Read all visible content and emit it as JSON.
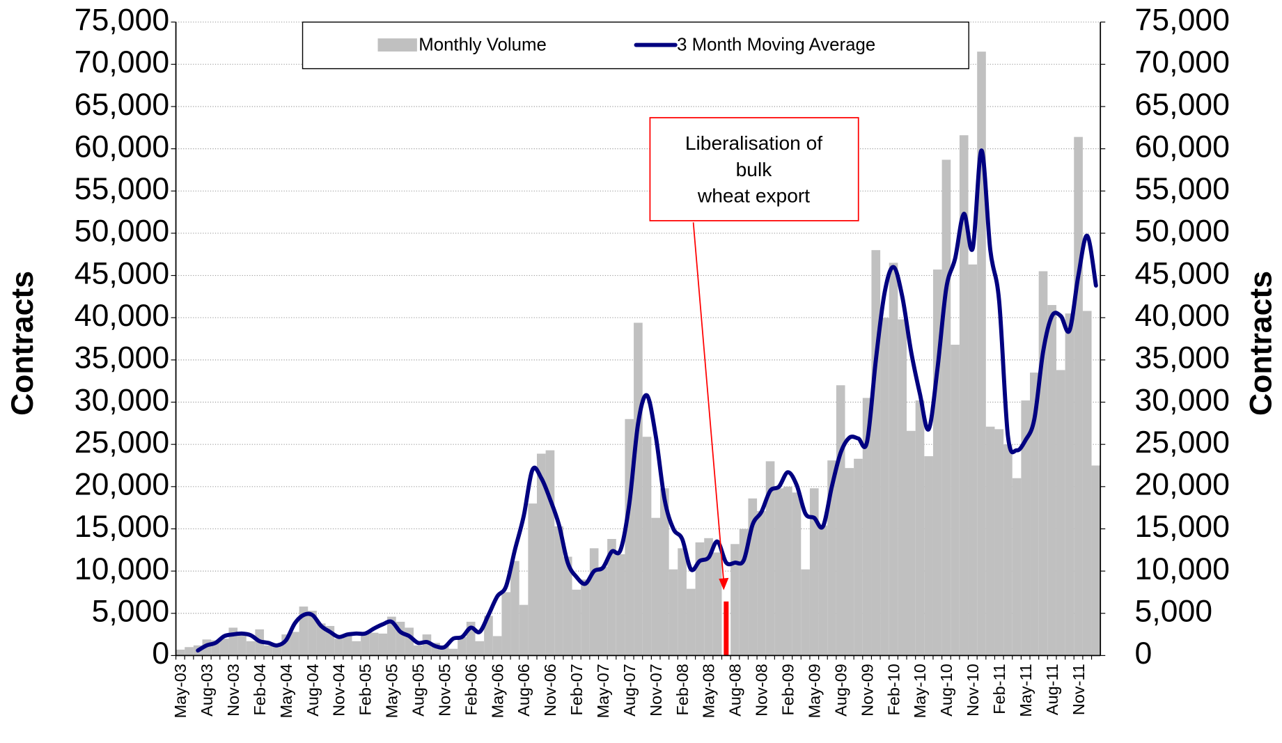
{
  "chart_data": {
    "type": "bar_line",
    "y_label": "Contracts",
    "y2_label": "Contracts",
    "categories": [
      "May-03",
      null,
      null,
      "Aug-03",
      null,
      null,
      "Nov-03",
      null,
      null,
      "Feb-04",
      null,
      null,
      "May-04",
      null,
      null,
      "Aug-04",
      null,
      null,
      "Nov-04",
      null,
      null,
      "Feb-05",
      null,
      null,
      "May-05",
      null,
      null,
      "Aug-05",
      null,
      null,
      "Nov-05",
      null,
      null,
      "Feb-06",
      null,
      null,
      "May-06",
      null,
      null,
      "Aug-06",
      null,
      null,
      "Nov-06",
      null,
      null,
      "Feb-07",
      null,
      null,
      "May-07",
      null,
      null,
      "Aug-07",
      null,
      null,
      "Nov-07",
      null,
      null,
      "Feb-08",
      null,
      null,
      "May-08",
      null,
      null,
      "Aug-08",
      null,
      null,
      "Nov-08",
      null,
      null,
      "Feb-09",
      null,
      null,
      "May-09",
      null,
      null,
      "Aug-09",
      null,
      null,
      "Nov-09",
      null,
      null,
      "Feb-10",
      null,
      null,
      "May-10",
      null,
      null,
      "Aug-10",
      null,
      null,
      "Nov-10",
      null,
      null,
      "Feb-11",
      null,
      null,
      "May-11",
      null,
      null,
      "Aug-11",
      null,
      null,
      "Nov-11",
      null,
      null
    ],
    "series": [
      {
        "name": "Monthly Volume",
        "type": "bar",
        "color": "#c0c0c0",
        "values": [
          700,
          1000,
          1200,
          1900,
          1800,
          2000,
          3300,
          2700,
          1700,
          3100,
          1200,
          1300,
          2500,
          2800,
          5800,
          5300,
          3800,
          3500,
          2000,
          2500,
          1700,
          2600,
          2700,
          2600,
          4600,
          4000,
          3300,
          1200,
          2500,
          1500,
          1200,
          800,
          2200,
          4000,
          1700,
          4700,
          2300,
          7500,
          11200,
          6000,
          18000,
          23900,
          24300,
          15300,
          11700,
          7800,
          9000,
          12700,
          10500,
          13800,
          12000,
          28000,
          39400,
          25900,
          16300,
          19800,
          10200,
          12700,
          7900,
          13400,
          13900,
          12200,
          6400,
          13200,
          15000,
          18600,
          17100,
          23000,
          19800,
          20000,
          19300,
          10200,
          19800,
          15400,
          23100,
          32000,
          22200,
          23300,
          30500,
          48000,
          40000,
          46500,
          39800,
          26600,
          30200,
          23600,
          45700,
          58700,
          36800,
          61600,
          46300,
          71500,
          27100,
          26800,
          25000,
          21000,
          30200,
          33500,
          45500,
          41500,
          33800,
          40500,
          61400,
          40800,
          22500
        ]
      },
      {
        "name": "3 Month Moving Average",
        "type": "line",
        "color": "#000080",
        "values": [
          null,
          null,
          600,
          1200,
          1500,
          2300,
          2500,
          2600,
          2400,
          1700,
          1500,
          1200,
          1800,
          3800,
          4800,
          4800,
          3500,
          2800,
          2200,
          2500,
          2600,
          2600,
          3200,
          3700,
          4000,
          2800,
          2300,
          1500,
          1600,
          1100,
          1000,
          2000,
          2200,
          3300,
          2800,
          4800,
          7000,
          8200,
          12500,
          16500,
          22000,
          21000,
          18500,
          15500,
          11000,
          9300,
          8500,
          10000,
          10400,
          12300,
          12500,
          18000,
          27500,
          30800,
          26000,
          18500,
          15000,
          13800,
          10200,
          11200,
          11600,
          13500,
          11000,
          11000,
          11300,
          15500,
          17000,
          19500,
          20000,
          21700,
          20200,
          16800,
          16300,
          15300,
          20000,
          24000,
          25800,
          25700,
          25300,
          35000,
          43000,
          46000,
          42500,
          36000,
          31000,
          26800,
          34000,
          43500,
          47000,
          52300,
          48200,
          59800,
          48000,
          42000,
          26000,
          24300,
          25500,
          28000,
          36000,
          40200,
          40200,
          38500,
          45000,
          49700,
          43800
        ]
      }
    ],
    "annotation": {
      "text": [
        "Liberalisation of",
        "bulk",
        "wheat export"
      ],
      "target": 62,
      "color": "#ff0000"
    },
    "ylim": [
      0,
      75000
    ],
    "yticks": [
      0,
      {
        "value": 5000,
        "label": "5,000"
      },
      {
        "value": 10000,
        "label": "10,000"
      },
      {
        "value": 15000,
        "label": "15,000"
      },
      {
        "value": 20000,
        "label": "20,000"
      },
      {
        "value": 25000,
        "label": "25,000"
      },
      {
        "value": 30000,
        "label": "30,000"
      },
      {
        "value": 35000,
        "label": "35,000"
      },
      {
        "value": 40000,
        "label": "40,000"
      },
      {
        "value": 45000,
        "label": "45,000"
      },
      {
        "value": 50000,
        "label": "50,000"
      },
      {
        "value": 55000,
        "label": "55,000"
      },
      {
        "value": 60000,
        "label": "60,000"
      },
      {
        "value": 65000,
        "label": "65,000"
      },
      {
        "value": 70000,
        "label": "70,000"
      },
      {
        "value": 75000,
        "label": "75,000"
      }
    ],
    "y2lim": [
      0,
      75000
    ],
    "y2ticks": [
      0,
      {
        "value": 5000,
        "label": "5,000"
      },
      {
        "value": 10000,
        "label": "10,000"
      },
      {
        "value": 15000,
        "label": "15,000"
      },
      {
        "value": 20000,
        "label": "20,000"
      },
      {
        "value": 25000,
        "label": "25,000"
      },
      {
        "value": 30000,
        "label": "30,000"
      },
      {
        "value": 35000,
        "label": "35,000"
      },
      {
        "value": 40000,
        "label": "40,000"
      },
      {
        "value": 45000,
        "label": "45,000"
      },
      {
        "value": 50000,
        "label": "50,000"
      },
      {
        "value": 55000,
        "label": "55,000"
      },
      {
        "value": 60000,
        "label": "60,000"
      },
      {
        "value": 65000,
        "label": "65,000"
      },
      {
        "value": 70000,
        "label": "70,000"
      },
      {
        "value": 75000,
        "label": "75,000"
      }
    ],
    "grid": true,
    "legend": "top"
  }
}
